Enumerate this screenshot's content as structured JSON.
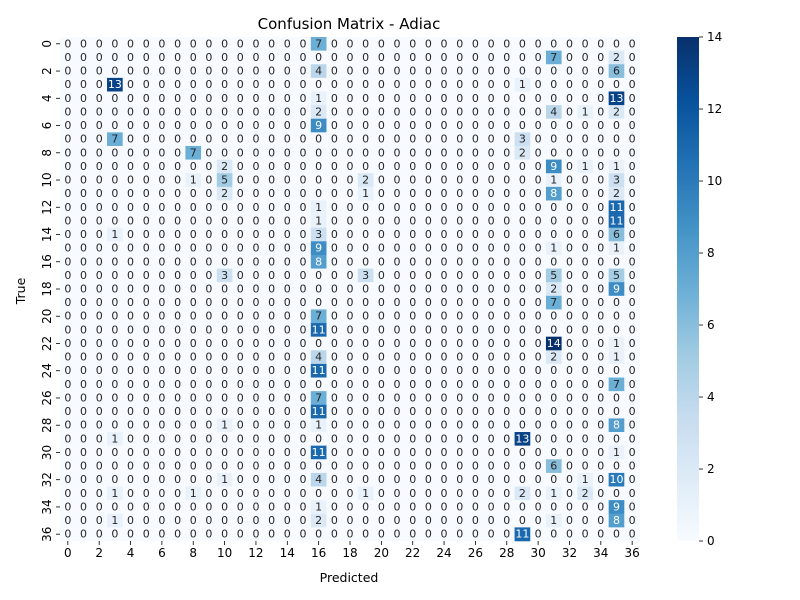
{
  "chart_data": {
    "type": "heatmap",
    "title": "Confusion Matrix - Adiac",
    "xlabel": "Predicted",
    "ylabel": "True",
    "x_tick_labels": [
      "0",
      "2",
      "4",
      "6",
      "8",
      "10",
      "12",
      "14",
      "16",
      "18",
      "20",
      "22",
      "24",
      "26",
      "28",
      "30",
      "32",
      "34",
      "36"
    ],
    "y_tick_labels": [
      "0",
      "2",
      "4",
      "6",
      "8",
      "10",
      "12",
      "14",
      "16",
      "18",
      "20",
      "22",
      "24",
      "26",
      "28",
      "30",
      "32",
      "34",
      "36"
    ],
    "colorbar_ticks": [
      "0",
      "2",
      "4",
      "6",
      "8",
      "10",
      "12",
      "14"
    ],
    "vmin": 0,
    "vmax": 14,
    "colormap": "Blues",
    "annotations": true,
    "nonzero_cells": [
      [
        0,
        16,
        7
      ],
      [
        1,
        31,
        7
      ],
      [
        1,
        35,
        2
      ],
      [
        2,
        16,
        4
      ],
      [
        2,
        35,
        6
      ],
      [
        3,
        3,
        13
      ],
      [
        3,
        29,
        1
      ],
      [
        4,
        16,
        1
      ],
      [
        4,
        35,
        13
      ],
      [
        5,
        16,
        2
      ],
      [
        5,
        31,
        4
      ],
      [
        5,
        33,
        1
      ],
      [
        5,
        35,
        2
      ],
      [
        6,
        16,
        9
      ],
      [
        7,
        3,
        7
      ],
      [
        7,
        29,
        3
      ],
      [
        8,
        8,
        7
      ],
      [
        8,
        29,
        2
      ],
      [
        9,
        10,
        2
      ],
      [
        9,
        31,
        9
      ],
      [
        9,
        33,
        1
      ],
      [
        9,
        35,
        1
      ],
      [
        10,
        8,
        1
      ],
      [
        10,
        10,
        5
      ],
      [
        10,
        19,
        2
      ],
      [
        10,
        31,
        1
      ],
      [
        10,
        35,
        3
      ],
      [
        11,
        10,
        2
      ],
      [
        11,
        19,
        1
      ],
      [
        11,
        31,
        8
      ],
      [
        11,
        35,
        2
      ],
      [
        12,
        16,
        1
      ],
      [
        12,
        35,
        11
      ],
      [
        13,
        16,
        1
      ],
      [
        13,
        35,
        11
      ],
      [
        14,
        3,
        1
      ],
      [
        14,
        16,
        3
      ],
      [
        14,
        35,
        6
      ],
      [
        15,
        16,
        9
      ],
      [
        15,
        31,
        1
      ],
      [
        15,
        35,
        1
      ],
      [
        16,
        16,
        8
      ],
      [
        17,
        10,
        3
      ],
      [
        17,
        19,
        3
      ],
      [
        17,
        31,
        5
      ],
      [
        17,
        35,
        5
      ],
      [
        18,
        31,
        2
      ],
      [
        18,
        35,
        9
      ],
      [
        19,
        31,
        7
      ],
      [
        20,
        16,
        7
      ],
      [
        21,
        16,
        11
      ],
      [
        22,
        31,
        14
      ],
      [
        22,
        35,
        1
      ],
      [
        23,
        16,
        4
      ],
      [
        23,
        31,
        2
      ],
      [
        23,
        35,
        1
      ],
      [
        24,
        16,
        11
      ],
      [
        25,
        35,
        7
      ],
      [
        26,
        16,
        7
      ],
      [
        27,
        16,
        11
      ],
      [
        28,
        10,
        1
      ],
      [
        28,
        16,
        1
      ],
      [
        28,
        35,
        8
      ],
      [
        29,
        3,
        1
      ],
      [
        29,
        29,
        13
      ],
      [
        30,
        16,
        11
      ],
      [
        30,
        35,
        1
      ],
      [
        31,
        31,
        6
      ],
      [
        32,
        10,
        1
      ],
      [
        32,
        16,
        4
      ],
      [
        32,
        33,
        1
      ],
      [
        32,
        35,
        10
      ],
      [
        33,
        3,
        1
      ],
      [
        33,
        8,
        1
      ],
      [
        33,
        19,
        1
      ],
      [
        33,
        29,
        2
      ],
      [
        33,
        31,
        1
      ],
      [
        33,
        33,
        2
      ],
      [
        34,
        16,
        1
      ],
      [
        34,
        35,
        9
      ],
      [
        35,
        3,
        1
      ],
      [
        35,
        16,
        2
      ],
      [
        35,
        31,
        1
      ],
      [
        35,
        35,
        8
      ],
      [
        36,
        29,
        11
      ]
    ]
  }
}
